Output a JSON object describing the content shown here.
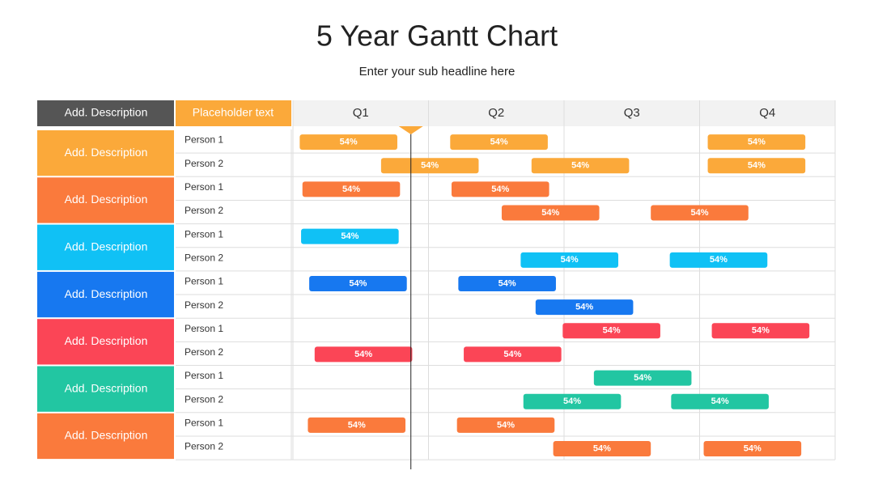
{
  "chart_data": {
    "type": "gantt",
    "title": "5 Year Gantt Chart",
    "subtitle": "Enter your sub headline here",
    "header": [
      "Add. Description",
      "Placeholder text"
    ],
    "categories": [
      "Q1",
      "Q2",
      "Q3",
      "Q4"
    ],
    "xlim": [
      0,
      4
    ],
    "marker": 0.87,
    "groups": [
      {
        "label": "Add. Description",
        "color": "#fba93a",
        "rows": [
          {
            "name": "Person 1",
            "bars": [
              {
                "start": 0.05,
                "end": 0.77,
                "label": "54%"
              },
              {
                "start": 1.16,
                "end": 1.88,
                "label": "54%"
              },
              {
                "start": 3.06,
                "end": 3.78,
                "label": "54%"
              }
            ]
          },
          {
            "name": "Person 2",
            "bars": [
              {
                "start": 0.65,
                "end": 1.37,
                "label": "54%"
              },
              {
                "start": 1.76,
                "end": 2.48,
                "label": "54%"
              },
              {
                "start": 3.06,
                "end": 3.78,
                "label": "54%"
              }
            ]
          }
        ]
      },
      {
        "label": "Add. Description",
        "color": "#fa7a3c",
        "rows": [
          {
            "name": "Person 1",
            "bars": [
              {
                "start": 0.07,
                "end": 0.79,
                "label": "54%"
              },
              {
                "start": 1.17,
                "end": 1.89,
                "label": "54%"
              }
            ]
          },
          {
            "name": "Person 2",
            "bars": [
              {
                "start": 1.54,
                "end": 2.26,
                "label": "54%"
              },
              {
                "start": 2.64,
                "end": 3.36,
                "label": "54%"
              }
            ]
          }
        ]
      },
      {
        "label": "Add. Description",
        "color": "#10c1f5",
        "rows": [
          {
            "name": "Person 1",
            "bars": [
              {
                "start": 0.06,
                "end": 0.78,
                "label": "54%"
              }
            ]
          },
          {
            "name": "Person 2",
            "bars": [
              {
                "start": 1.68,
                "end": 2.4,
                "label": "54%"
              },
              {
                "start": 2.78,
                "end": 3.5,
                "label": "54%"
              }
            ]
          }
        ]
      },
      {
        "label": "Add. Description",
        "color": "#1778f0",
        "rows": [
          {
            "name": "Person 1",
            "bars": [
              {
                "start": 0.12,
                "end": 0.84,
                "label": "54%"
              },
              {
                "start": 1.22,
                "end": 1.94,
                "label": "54%"
              }
            ]
          },
          {
            "name": "Person 2",
            "bars": [
              {
                "start": 1.79,
                "end": 2.51,
                "label": "54%"
              }
            ]
          }
        ]
      },
      {
        "label": "Add. Description",
        "color": "#fb4556",
        "rows": [
          {
            "name": "Person 1",
            "bars": [
              {
                "start": 1.99,
                "end": 2.71,
                "label": "54%"
              },
              {
                "start": 3.09,
                "end": 3.81,
                "label": "54%"
              }
            ]
          },
          {
            "name": "Person 2",
            "bars": [
              {
                "start": 0.16,
                "end": 0.88,
                "label": "54%"
              },
              {
                "start": 1.26,
                "end": 1.98,
                "label": "54%"
              }
            ]
          }
        ]
      },
      {
        "label": "Add. Description",
        "color": "#22c6a2",
        "rows": [
          {
            "name": "Person 1",
            "bars": [
              {
                "start": 2.22,
                "end": 2.94,
                "label": "54%"
              }
            ]
          },
          {
            "name": "Person 2",
            "bars": [
              {
                "start": 1.7,
                "end": 2.42,
                "label": "54%"
              },
              {
                "start": 2.79,
                "end": 3.51,
                "label": "54%"
              }
            ]
          }
        ]
      },
      {
        "label": "Add. Description",
        "color": "#fa7a3c",
        "rows": [
          {
            "name": "Person 1",
            "bars": [
              {
                "start": 0.11,
                "end": 0.83,
                "label": "54%"
              },
              {
                "start": 1.21,
                "end": 1.93,
                "label": "54%"
              }
            ]
          },
          {
            "name": "Person 2",
            "bars": [
              {
                "start": 1.92,
                "end": 2.64,
                "label": "54%"
              },
              {
                "start": 3.03,
                "end": 3.75,
                "label": "54%"
              }
            ]
          }
        ]
      }
    ]
  }
}
